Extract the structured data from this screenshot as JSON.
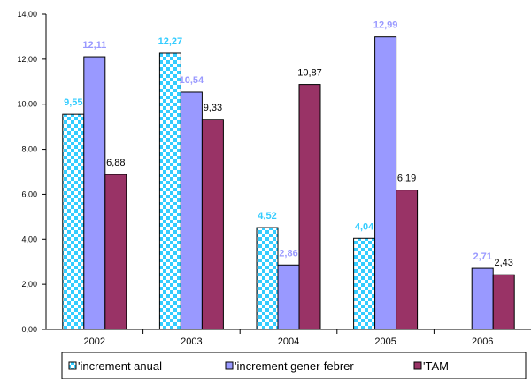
{
  "chart_data": {
    "type": "bar",
    "categories": [
      "2002",
      "2003",
      "2004",
      "2005",
      "2006"
    ],
    "series": [
      {
        "name": "'increment anual",
        "values": [
          9.55,
          12.27,
          4.52,
          4.04,
          null
        ],
        "labels": [
          "9,55",
          "12,27",
          "4,52",
          "4,04",
          ""
        ],
        "color": "#33CCFF",
        "pattern": "checker",
        "label_color": "#33CCFF"
      },
      {
        "name": "'increment gener-febrer",
        "values": [
          12.11,
          10.54,
          2.86,
          12.99,
          2.71
        ],
        "labels": [
          "12,11",
          "10,54",
          "2,86",
          "12,99",
          "2,71"
        ],
        "color": "#9999FF",
        "pattern": "solid",
        "label_color": "#9999FF"
      },
      {
        "name": "'TAM",
        "values": [
          6.88,
          9.33,
          10.87,
          6.19,
          2.43
        ],
        "labels": [
          "6,88",
          "9,33",
          "10,87",
          "6,19",
          "2,43"
        ],
        "color": "#993366",
        "pattern": "solid",
        "label_color": "#000000"
      }
    ],
    "y_ticks": [
      "0,00",
      "2,00",
      "4,00",
      "6,00",
      "8,00",
      "10,00",
      "12,00",
      "14,00"
    ],
    "ylim": [
      0,
      14
    ],
    "title": "",
    "xlabel": "",
    "ylabel": "",
    "grid": false,
    "legend_position": "bottom"
  }
}
